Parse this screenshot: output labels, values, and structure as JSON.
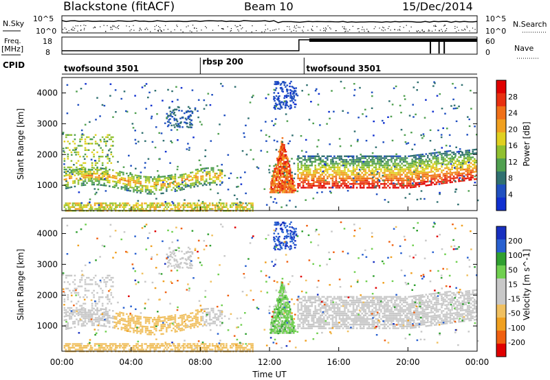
{
  "header": {
    "station": "Blackstone (fitACF)",
    "beam": "Beam 10",
    "date": "15/Dec/2014"
  },
  "top_panels": {
    "noise_label_left": "N.Sky",
    "noise_label_right": "N.Search",
    "noise_tick_high": "10^5",
    "noise_tick_low": "10^0",
    "freq_label": "Freq.",
    "freq_unit": "[MHz]",
    "freq_ticks": [
      "18",
      "8"
    ],
    "nave_label": "Nave",
    "nave_ticks": [
      "60",
      "0"
    ],
    "cpid_label": "CPID",
    "cpid_segments": [
      {
        "name": "twofsound 3501",
        "start_h": 0,
        "end_h": 8
      },
      {
        "name": "rbsp 200",
        "start_h": 8,
        "end_h": 14
      },
      {
        "name": "twofsound 3501",
        "start_h": 14,
        "end_h": 24
      }
    ]
  },
  "colors": {
    "power_scale": [
      "#1030d0",
      "#2050c0",
      "#307070",
      "#50a050",
      "#90c030",
      "#e0d020",
      "#f0a020",
      "#f07018",
      "#e83010",
      "#e00000"
    ],
    "velocity_scale": [
      "#1830c0",
      "#2860d0",
      "#30a030",
      "#70d050",
      "#c8c8c8",
      "#c8c8c8",
      "#f0c060",
      "#f0a020",
      "#f06010",
      "#e00000"
    ]
  },
  "chart_data": [
    {
      "type": "heatmap",
      "title": "",
      "xlabel": "Time UT",
      "ylabel": "Slant Range [km]",
      "xlim": [
        0,
        24
      ],
      "ylim": [
        180,
        4500
      ],
      "x_ticks": [
        "00:00",
        "04:00",
        "08:00",
        "12:00",
        "16:00",
        "20:00",
        "00:00"
      ],
      "y_ticks": [
        "1000",
        "2000",
        "3000",
        "4000"
      ],
      "colorbar": {
        "label": "Power [dB]",
        "ticks": [
          "4",
          "8",
          "12",
          "16",
          "20",
          "24",
          "28"
        ],
        "range": [
          0,
          30
        ]
      },
      "features": [
        {
          "time_h": [
            0.2,
            9.0
          ],
          "range_km": [
            900,
            1500
          ],
          "power_db": 22
        },
        {
          "time_h": [
            12.0,
            13.5
          ],
          "range_km": [
            800,
            2500
          ],
          "power_db": 26
        },
        {
          "time_h": [
            13.5,
            24.0
          ],
          "range_km": [
            900,
            2200
          ],
          "power_db": 26
        },
        {
          "time_h": [
            0.0,
            11.0
          ],
          "range_km": [
            200,
            400
          ],
          "power_db": 14
        }
      ]
    },
    {
      "type": "heatmap",
      "title": "",
      "xlabel": "Time UT",
      "ylabel": "Slant Range [km]",
      "xlim": [
        0,
        24
      ],
      "ylim": [
        180,
        4500
      ],
      "x_ticks": [
        "00:00",
        "04:00",
        "08:00",
        "12:00",
        "16:00",
        "20:00",
        "00:00"
      ],
      "y_ticks": [
        "1000",
        "2000",
        "3000",
        "4000"
      ],
      "colorbar": {
        "label": "Velocity [m s^-1]",
        "ticks": [
          "200",
          "100",
          "50",
          "15",
          "-15",
          "-50",
          "-100",
          "-200"
        ],
        "range": [
          -250,
          250
        ]
      },
      "features": [
        {
          "time_h": [
            0.2,
            9.0
          ],
          "range_km": [
            900,
            1500
          ],
          "velocity": -60
        },
        {
          "time_h": [
            12.0,
            13.5
          ],
          "range_km": [
            800,
            2500
          ],
          "velocity": 60
        },
        {
          "time_h": [
            13.5,
            24.0
          ],
          "range_km": [
            900,
            2200
          ],
          "velocity": 0
        },
        {
          "time_h": [
            0.0,
            11.0
          ],
          "range_km": [
            200,
            400
          ],
          "velocity": -80
        }
      ]
    }
  ]
}
